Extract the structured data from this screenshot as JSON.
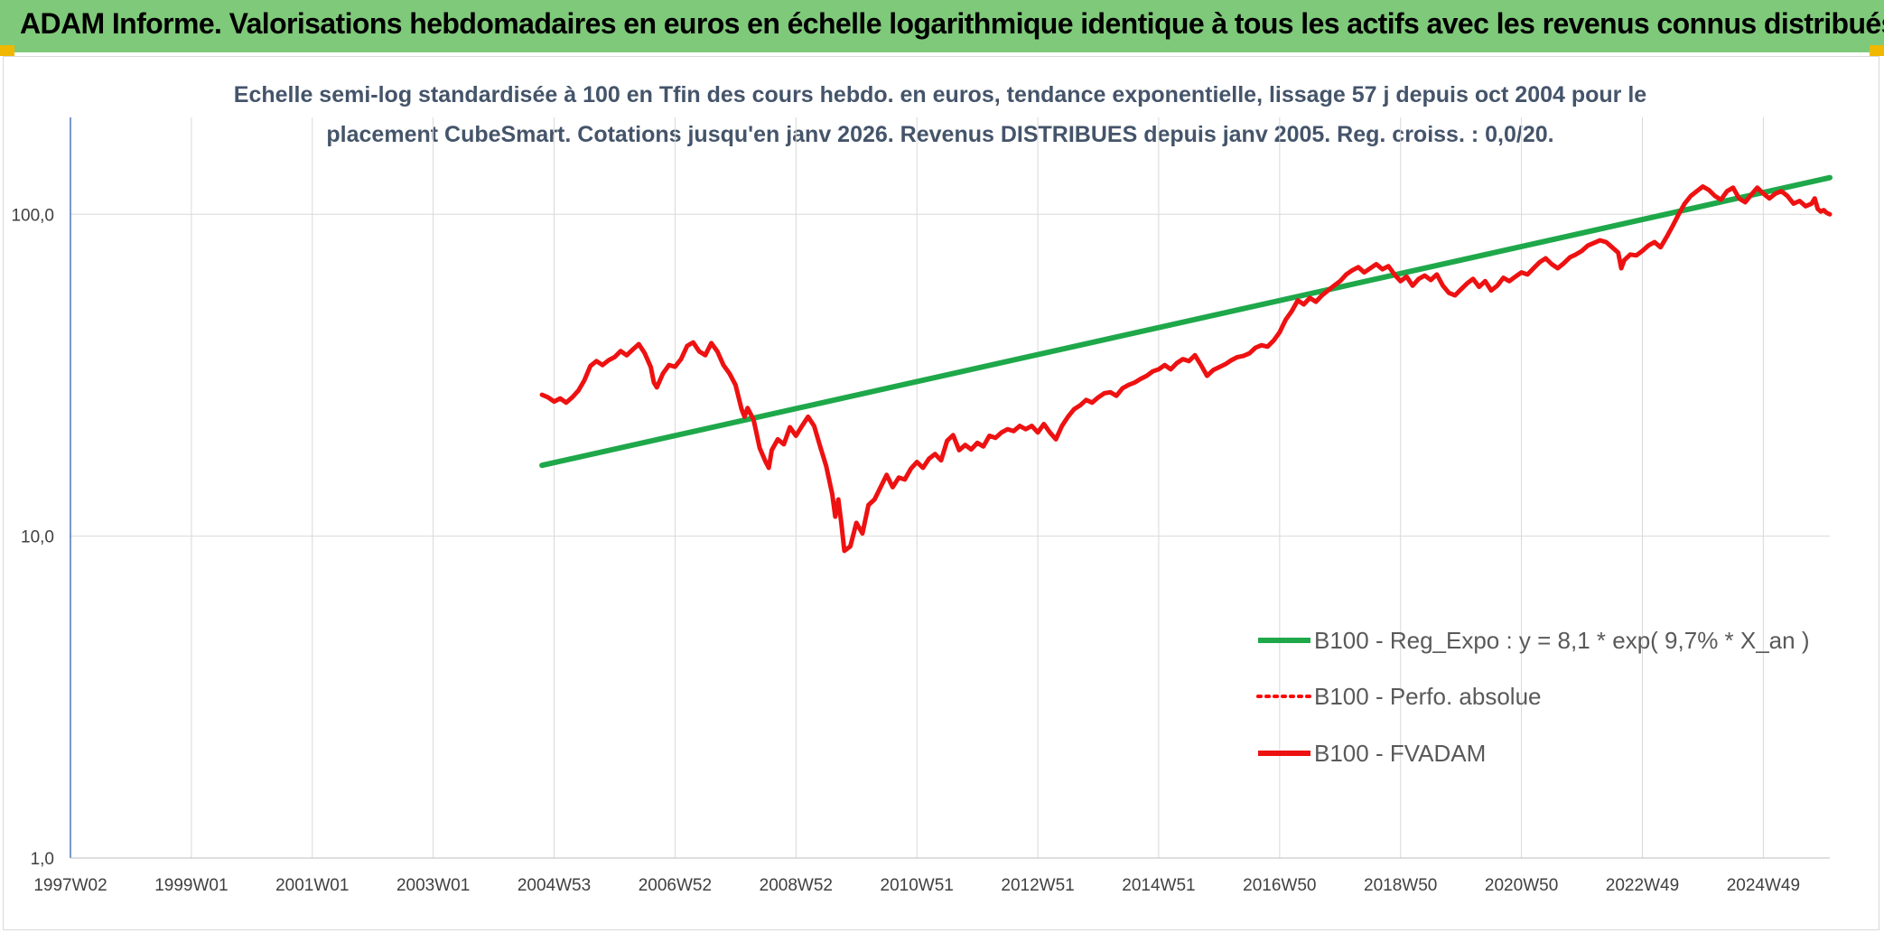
{
  "banner": {
    "title": "ADAM Informe. Valorisations hebdomadaires en euros en échelle logarithmique identique à tous les actifs avec les revenus connus distribués",
    "background": "#7fc97a"
  },
  "chart_data": {
    "type": "line",
    "subtitle_line1": "Echelle semi-log standardisée à 100 en Tfin des cours hebdo. en euros, tendance exponentielle, lissage 57 j depuis oct 2004 pour le",
    "subtitle_line2": "placement CubeSmart. Cotations jusqu'en janv 2026. Revenus DISTRIBUES depuis janv 2005. Reg. croiss. : 0,0/20.",
    "y_scale": "log",
    "ylim": [
      1,
      200
    ],
    "y_ticks": [
      {
        "value": 1,
        "label": "1,0"
      },
      {
        "value": 10,
        "label": "10,0"
      },
      {
        "value": 100,
        "label": "100,0"
      }
    ],
    "xlim": [
      1997.0,
      2026.1
    ],
    "x_ticks": [
      {
        "value": 1997.0,
        "label": "1997W02"
      },
      {
        "value": 1999.0,
        "label": "1999W01"
      },
      {
        "value": 2001.0,
        "label": "2001W01"
      },
      {
        "value": 2003.0,
        "label": "2003W01"
      },
      {
        "value": 2005.0,
        "label": "2004W53"
      },
      {
        "value": 2007.0,
        "label": "2006W52"
      },
      {
        "value": 2009.0,
        "label": "2008W52"
      },
      {
        "value": 2011.0,
        "label": "2010W51"
      },
      {
        "value": 2013.0,
        "label": "2012W51"
      },
      {
        "value": 2015.0,
        "label": "2014W51"
      },
      {
        "value": 2017.0,
        "label": "2016W50"
      },
      {
        "value": 2019.0,
        "label": "2018W50"
      },
      {
        "value": 2021.0,
        "label": "2020W50"
      },
      {
        "value": 2023.0,
        "label": "2022W49"
      },
      {
        "value": 2025.0,
        "label": "2024W49"
      }
    ],
    "grid": true,
    "legend_position": "bottom-right",
    "series": [
      {
        "name": "B100 - Reg_Expo : y = 8,1 * exp( 9,7% *  X_an )",
        "color": "#1ea84a",
        "style": "solid",
        "points": [
          [
            2004.8,
            16.6
          ],
          [
            2026.1,
            130
          ]
        ]
      },
      {
        "name": "B100 - Perfo. absolue",
        "color": "#ff0000",
        "style": "dotted",
        "points": []
      },
      {
        "name": "B100 - FVADAM",
        "color": "#ee1111",
        "style": "solid",
        "points": [
          [
            2004.8,
            27.5
          ],
          [
            2004.9,
            27.0
          ],
          [
            2005.0,
            26.2
          ],
          [
            2005.1,
            26.8
          ],
          [
            2005.2,
            26.0
          ],
          [
            2005.3,
            27.0
          ],
          [
            2005.4,
            28.3
          ],
          [
            2005.5,
            30.5
          ],
          [
            2005.6,
            33.8
          ],
          [
            2005.7,
            35.0
          ],
          [
            2005.8,
            34.0
          ],
          [
            2005.9,
            35.2
          ],
          [
            2006.0,
            36.0
          ],
          [
            2006.1,
            37.6
          ],
          [
            2006.2,
            36.5
          ],
          [
            2006.3,
            38.0
          ],
          [
            2006.4,
            39.5
          ],
          [
            2006.5,
            37.0
          ],
          [
            2006.6,
            33.5
          ],
          [
            2006.65,
            30.0
          ],
          [
            2006.7,
            29.0
          ],
          [
            2006.8,
            32.0
          ],
          [
            2006.9,
            34.0
          ],
          [
            2007.0,
            33.6
          ],
          [
            2007.1,
            35.5
          ],
          [
            2007.2,
            39.0
          ],
          [
            2007.3,
            40.0
          ],
          [
            2007.4,
            37.5
          ],
          [
            2007.5,
            36.5
          ],
          [
            2007.6,
            39.8
          ],
          [
            2007.7,
            37.5
          ],
          [
            2007.8,
            34.0
          ],
          [
            2007.9,
            32.0
          ],
          [
            2008.0,
            29.5
          ],
          [
            2008.1,
            24.8
          ],
          [
            2008.15,
            23.5
          ],
          [
            2008.2,
            25.0
          ],
          [
            2008.3,
            23.0
          ],
          [
            2008.4,
            18.8
          ],
          [
            2008.5,
            17.0
          ],
          [
            2008.55,
            16.3
          ],
          [
            2008.6,
            18.5
          ],
          [
            2008.7,
            20.0
          ],
          [
            2008.8,
            19.3
          ],
          [
            2008.9,
            21.8
          ],
          [
            2009.0,
            20.5
          ],
          [
            2009.1,
            22.0
          ],
          [
            2009.2,
            23.5
          ],
          [
            2009.3,
            22.0
          ],
          [
            2009.4,
            19.0
          ],
          [
            2009.5,
            16.5
          ],
          [
            2009.6,
            13.5
          ],
          [
            2009.65,
            11.5
          ],
          [
            2009.7,
            13.0
          ],
          [
            2009.75,
            11.0
          ],
          [
            2009.8,
            9.0
          ],
          [
            2009.9,
            9.3
          ],
          [
            2010.0,
            11.0
          ],
          [
            2010.1,
            10.2
          ],
          [
            2010.2,
            12.5
          ],
          [
            2010.3,
            13.0
          ],
          [
            2010.4,
            14.2
          ],
          [
            2010.5,
            15.5
          ],
          [
            2010.6,
            14.2
          ],
          [
            2010.7,
            15.2
          ],
          [
            2010.8,
            15.0
          ],
          [
            2010.9,
            16.2
          ],
          [
            2011.0,
            17.0
          ],
          [
            2011.1,
            16.3
          ],
          [
            2011.2,
            17.4
          ],
          [
            2011.3,
            18.0
          ],
          [
            2011.4,
            17.2
          ],
          [
            2011.5,
            19.8
          ],
          [
            2011.6,
            20.6
          ],
          [
            2011.7,
            18.5
          ],
          [
            2011.8,
            19.2
          ],
          [
            2011.9,
            18.6
          ],
          [
            2012.0,
            19.5
          ],
          [
            2012.1,
            19.0
          ],
          [
            2012.2,
            20.5
          ],
          [
            2012.3,
            20.2
          ],
          [
            2012.4,
            21.0
          ],
          [
            2012.5,
            21.5
          ],
          [
            2012.6,
            21.2
          ],
          [
            2012.7,
            22.0
          ],
          [
            2012.8,
            21.5
          ],
          [
            2012.9,
            22.0
          ],
          [
            2013.0,
            21.0
          ],
          [
            2013.1,
            22.3
          ],
          [
            2013.2,
            21.0
          ],
          [
            2013.3,
            20.0
          ],
          [
            2013.4,
            22.0
          ],
          [
            2013.5,
            23.5
          ],
          [
            2013.6,
            24.8
          ],
          [
            2013.7,
            25.5
          ],
          [
            2013.8,
            26.5
          ],
          [
            2013.9,
            26.0
          ],
          [
            2014.0,
            27.0
          ],
          [
            2014.1,
            27.8
          ],
          [
            2014.2,
            28.0
          ],
          [
            2014.3,
            27.3
          ],
          [
            2014.4,
            28.8
          ],
          [
            2014.5,
            29.5
          ],
          [
            2014.6,
            30.0
          ],
          [
            2014.7,
            30.8
          ],
          [
            2014.8,
            31.5
          ],
          [
            2014.9,
            32.5
          ],
          [
            2015.0,
            33.0
          ],
          [
            2015.1,
            34.0
          ],
          [
            2015.2,
            33.0
          ],
          [
            2015.3,
            34.5
          ],
          [
            2015.4,
            35.5
          ],
          [
            2015.5,
            35.0
          ],
          [
            2015.6,
            36.5
          ],
          [
            2015.7,
            34.0
          ],
          [
            2015.8,
            31.5
          ],
          [
            2015.9,
            32.8
          ],
          [
            2016.0,
            33.5
          ],
          [
            2016.1,
            34.2
          ],
          [
            2016.2,
            35.2
          ],
          [
            2016.3,
            36.0
          ],
          [
            2016.4,
            36.3
          ],
          [
            2016.5,
            37.0
          ],
          [
            2016.6,
            38.5
          ],
          [
            2016.7,
            39.2
          ],
          [
            2016.8,
            38.8
          ],
          [
            2016.9,
            40.5
          ],
          [
            2017.0,
            43.0
          ],
          [
            2017.05,
            45.0
          ],
          [
            2017.1,
            47.0
          ],
          [
            2017.2,
            50.0
          ],
          [
            2017.3,
            54.0
          ],
          [
            2017.4,
            52.5
          ],
          [
            2017.5,
            55.0
          ],
          [
            2017.6,
            53.5
          ],
          [
            2017.7,
            56.0
          ],
          [
            2017.8,
            58.0
          ],
          [
            2017.9,
            60.0
          ],
          [
            2018.0,
            62.0
          ],
          [
            2018.1,
            65.0
          ],
          [
            2018.2,
            67.0
          ],
          [
            2018.3,
            68.5
          ],
          [
            2018.4,
            66.0
          ],
          [
            2018.5,
            68.0
          ],
          [
            2018.6,
            70.0
          ],
          [
            2018.7,
            67.5
          ],
          [
            2018.8,
            69.0
          ],
          [
            2018.9,
            65.0
          ],
          [
            2019.0,
            62.0
          ],
          [
            2019.1,
            64.0
          ],
          [
            2019.2,
            60.0
          ],
          [
            2019.3,
            63.0
          ],
          [
            2019.4,
            64.5
          ],
          [
            2019.5,
            62.5
          ],
          [
            2019.6,
            65.0
          ],
          [
            2019.7,
            60.0
          ],
          [
            2019.8,
            57.0
          ],
          [
            2019.9,
            56.0
          ],
          [
            2020.0,
            58.5
          ],
          [
            2020.1,
            61.0
          ],
          [
            2020.2,
            63.0
          ],
          [
            2020.3,
            59.5
          ],
          [
            2020.4,
            62.0
          ],
          [
            2020.5,
            58.0
          ],
          [
            2020.6,
            60.0
          ],
          [
            2020.7,
            63.5
          ],
          [
            2020.8,
            62.0
          ],
          [
            2020.9,
            64.0
          ],
          [
            2021.0,
            66.0
          ],
          [
            2021.1,
            65.0
          ],
          [
            2021.2,
            68.0
          ],
          [
            2021.3,
            71.0
          ],
          [
            2021.4,
            73.0
          ],
          [
            2021.5,
            70.0
          ],
          [
            2021.6,
            68.0
          ],
          [
            2021.7,
            70.5
          ],
          [
            2021.8,
            73.5
          ],
          [
            2021.9,
            75.0
          ],
          [
            2022.0,
            77.0
          ],
          [
            2022.1,
            80.0
          ],
          [
            2022.2,
            81.5
          ],
          [
            2022.3,
            83.0
          ],
          [
            2022.4,
            82.0
          ],
          [
            2022.5,
            79.0
          ],
          [
            2022.6,
            76.0
          ],
          [
            2022.65,
            68.0
          ],
          [
            2022.7,
            72.0
          ],
          [
            2022.8,
            75.0
          ],
          [
            2022.9,
            74.5
          ],
          [
            2023.0,
            77.0
          ],
          [
            2023.1,
            80.0
          ],
          [
            2023.2,
            82.0
          ],
          [
            2023.3,
            79.0
          ],
          [
            2023.4,
            85.0
          ],
          [
            2023.5,
            92.0
          ],
          [
            2023.6,
            100.0
          ],
          [
            2023.7,
            108.0
          ],
          [
            2023.8,
            114.0
          ],
          [
            2023.9,
            118.0
          ],
          [
            2024.0,
            122.0
          ],
          [
            2024.1,
            119.0
          ],
          [
            2024.2,
            114.0
          ],
          [
            2024.3,
            111.0
          ],
          [
            2024.4,
            118.0
          ],
          [
            2024.5,
            121.0
          ],
          [
            2024.6,
            112.0
          ],
          [
            2024.7,
            109.0
          ],
          [
            2024.8,
            115.0
          ],
          [
            2024.9,
            121.0
          ],
          [
            2025.0,
            116.0
          ],
          [
            2025.1,
            112.0
          ],
          [
            2025.2,
            116.0
          ],
          [
            2025.3,
            118.0
          ],
          [
            2025.4,
            114.0
          ],
          [
            2025.5,
            108.0
          ],
          [
            2025.6,
            110.0
          ],
          [
            2025.7,
            106.0
          ],
          [
            2025.8,
            108.0
          ],
          [
            2025.85,
            112.0
          ],
          [
            2025.9,
            104.0
          ],
          [
            2025.95,
            102.0
          ],
          [
            2026.0,
            103.0
          ],
          [
            2026.05,
            101.0
          ],
          [
            2026.1,
            100.0
          ]
        ]
      }
    ]
  }
}
